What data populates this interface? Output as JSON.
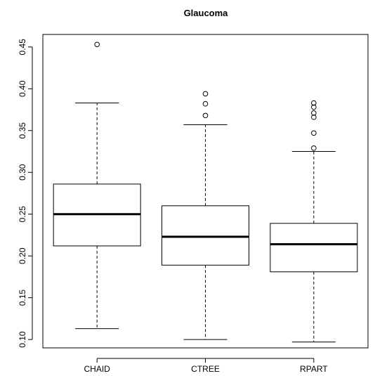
{
  "chart_data": {
    "type": "boxplot",
    "title": "Glaucoma",
    "xlabel": "",
    "ylabel": "",
    "categories": [
      "CHAID",
      "CTREE",
      "RPART"
    ],
    "boxes": [
      {
        "name": "CHAID",
        "whisker_low": 0.113,
        "q1": 0.212,
        "median": 0.25,
        "q3": 0.286,
        "whisker_high": 0.383,
        "outliers": [
          0.453
        ]
      },
      {
        "name": "CTREE",
        "whisker_low": 0.1,
        "q1": 0.189,
        "median": 0.223,
        "q3": 0.26,
        "whisker_high": 0.357,
        "outliers": [
          0.368,
          0.382,
          0.394
        ]
      },
      {
        "name": "RPART",
        "whisker_low": 0.097,
        "q1": 0.181,
        "median": 0.214,
        "q3": 0.239,
        "whisker_high": 0.325,
        "outliers": [
          0.329,
          0.347,
          0.366,
          0.371,
          0.378,
          0.383
        ]
      }
    ],
    "yticks": [
      "0.10",
      "0.15",
      "0.20",
      "0.25",
      "0.30",
      "0.35",
      "0.40",
      "0.45"
    ],
    "ylim": [
      0.09,
      0.465
    ],
    "grid": false,
    "legend": "none"
  }
}
